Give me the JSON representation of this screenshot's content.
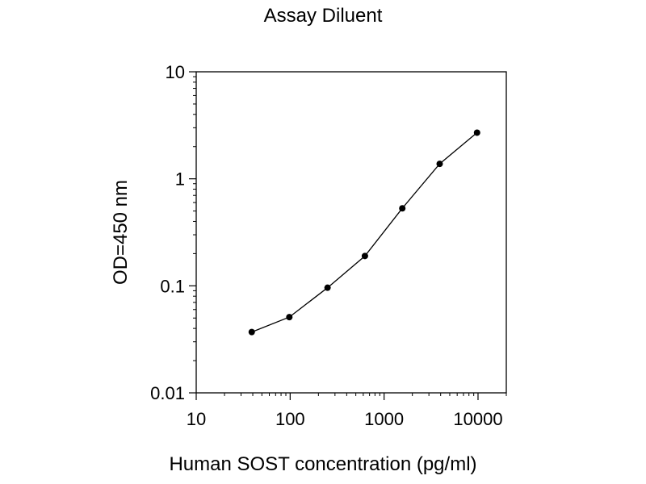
{
  "chart_data": {
    "type": "line",
    "title": "Assay Diluent",
    "xlabel": "Human SOST concentration (pg/ml)",
    "ylabel": "OD=450 nm",
    "x_scale": "log",
    "y_scale": "log",
    "xlim": [
      10,
      20000
    ],
    "ylim": [
      0.01,
      10
    ],
    "x_ticks": [
      10,
      100,
      1000,
      10000
    ],
    "x_tick_labels": [
      "10",
      "100",
      "1000",
      "10000"
    ],
    "y_ticks": [
      0.01,
      0.1,
      1,
      10
    ],
    "y_tick_labels": [
      "0.01",
      "0.1",
      "1",
      "10"
    ],
    "grid": false,
    "series": [
      {
        "x": [
          39,
          98,
          250,
          625,
          1563,
          3906,
          9766
        ],
        "y": [
          0.037,
          0.051,
          0.096,
          0.19,
          0.53,
          1.38,
          2.7
        ]
      }
    ],
    "colors": {
      "line": "#000000",
      "marker": "#000000",
      "axis": "#000000"
    }
  }
}
